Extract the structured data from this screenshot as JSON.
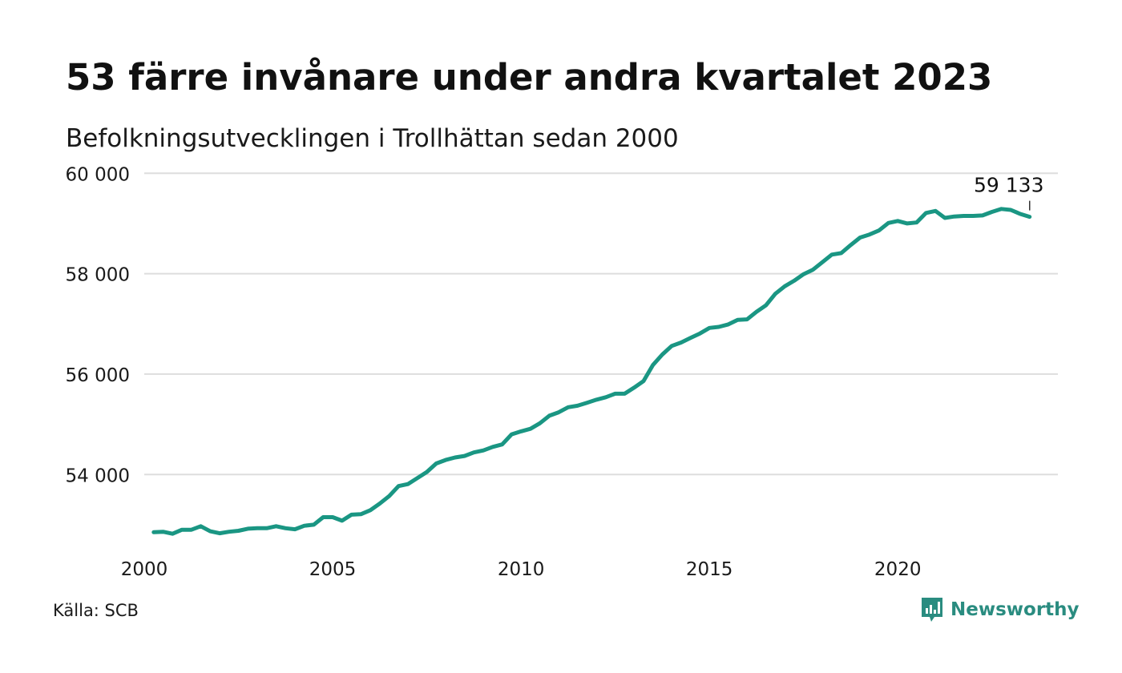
{
  "header": {
    "title": "53 färre invånare under andra kvartalet 2023",
    "subtitle": "Befolkningsutvecklingen i Trollhättan sedan 2000"
  },
  "footer": {
    "source": "Källa: SCB",
    "brand": "Newsworthy"
  },
  "colors": {
    "line": "#1a9683",
    "grid": "#dddddd",
    "brand": "#2a8c80"
  },
  "icons": {
    "brand_logo": "newsworthy-logo-icon"
  },
  "chart_data": {
    "type": "line",
    "x_start": 2000,
    "x_step": "quarter",
    "xlim": [
      2000,
      2024.25
    ],
    "ylim": [
      52600,
      60100
    ],
    "y_ticks": [
      54000,
      56000,
      58000,
      60000
    ],
    "y_tick_labels": [
      "54 000",
      "56 000",
      "58 000",
      "60 000"
    ],
    "x_ticks": [
      2000,
      2005,
      2010,
      2015,
      2020
    ],
    "x_tick_labels": [
      "2000",
      "2005",
      "2010",
      "2015",
      "2020"
    ],
    "grid": "horizontal",
    "end_label": "59 133",
    "values": [
      52850,
      52860,
      52820,
      52900,
      52900,
      52970,
      52870,
      52830,
      52860,
      52880,
      52920,
      52930,
      52930,
      52970,
      52930,
      52910,
      52980,
      53000,
      53150,
      53150,
      53080,
      53200,
      53210,
      53290,
      53420,
      53570,
      53770,
      53810,
      53930,
      54050,
      54220,
      54290,
      54340,
      54370,
      54440,
      54480,
      54550,
      54600,
      54800,
      54860,
      54910,
      55020,
      55170,
      55240,
      55340,
      55370,
      55430,
      55490,
      55540,
      55610,
      55610,
      55730,
      55860,
      56180,
      56390,
      56560,
      56630,
      56720,
      56810,
      56920,
      56940,
      56990,
      57080,
      57090,
      57240,
      57370,
      57600,
      57750,
      57860,
      57990,
      58080,
      58230,
      58380,
      58410,
      58570,
      58720,
      58780,
      58860,
      59010,
      59050,
      59000,
      59020,
      59210,
      59250,
      59110,
      59140,
      59150,
      59150,
      59160,
      59230,
      59290,
      59270,
      59190,
      59133
    ]
  }
}
